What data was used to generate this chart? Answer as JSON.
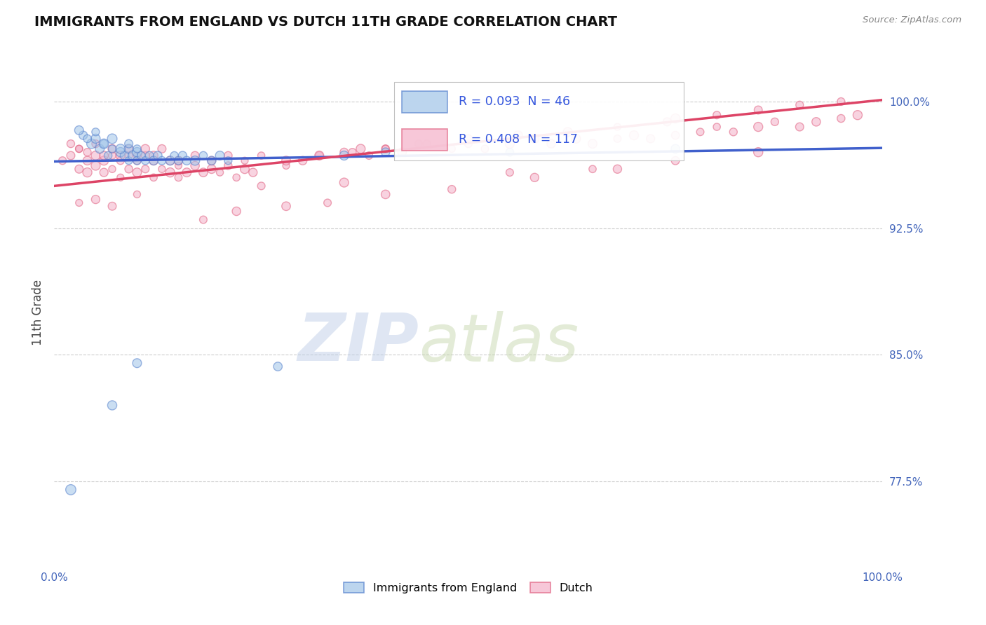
{
  "title": "IMMIGRANTS FROM ENGLAND VS DUTCH 11TH GRADE CORRELATION CHART",
  "source_text": "Source: ZipAtlas.com",
  "ylabel": "11th Grade",
  "x_min": 0.0,
  "x_max": 1.0,
  "y_min": 0.725,
  "y_max": 1.025,
  "y_ticks": [
    0.775,
    0.85,
    0.925,
    1.0
  ],
  "y_tick_labels": [
    "77.5%",
    "85.0%",
    "92.5%",
    "100.0%"
  ],
  "color_england": "#a0c4e8",
  "color_dutch": "#f4b0c8",
  "edge_england": "#5580cc",
  "edge_dutch": "#e06080",
  "line_color_england": "#4060cc",
  "line_color_dutch": "#dd4466",
  "watermark_zip": "ZIP",
  "watermark_atlas": "atlas",
  "watermark_color_zip": "#c0cfe8",
  "watermark_color_atlas": "#c8d8b0",
  "eng_line_x0": 0.0,
  "eng_line_y0": 0.9645,
  "eng_line_x1": 1.0,
  "eng_line_y1": 0.9725,
  "dutch_line_x0": 0.0,
  "dutch_line_y0": 0.95,
  "dutch_line_x1": 1.0,
  "dutch_line_y1": 1.001,
  "legend_R_eng": "R = 0.093",
  "legend_N_eng": "N = 46",
  "legend_R_dutch": "R = 0.408",
  "legend_N_dutch": "N = 117",
  "legend_label_eng": "Immigrants from England",
  "legend_label_dutch": "Dutch"
}
